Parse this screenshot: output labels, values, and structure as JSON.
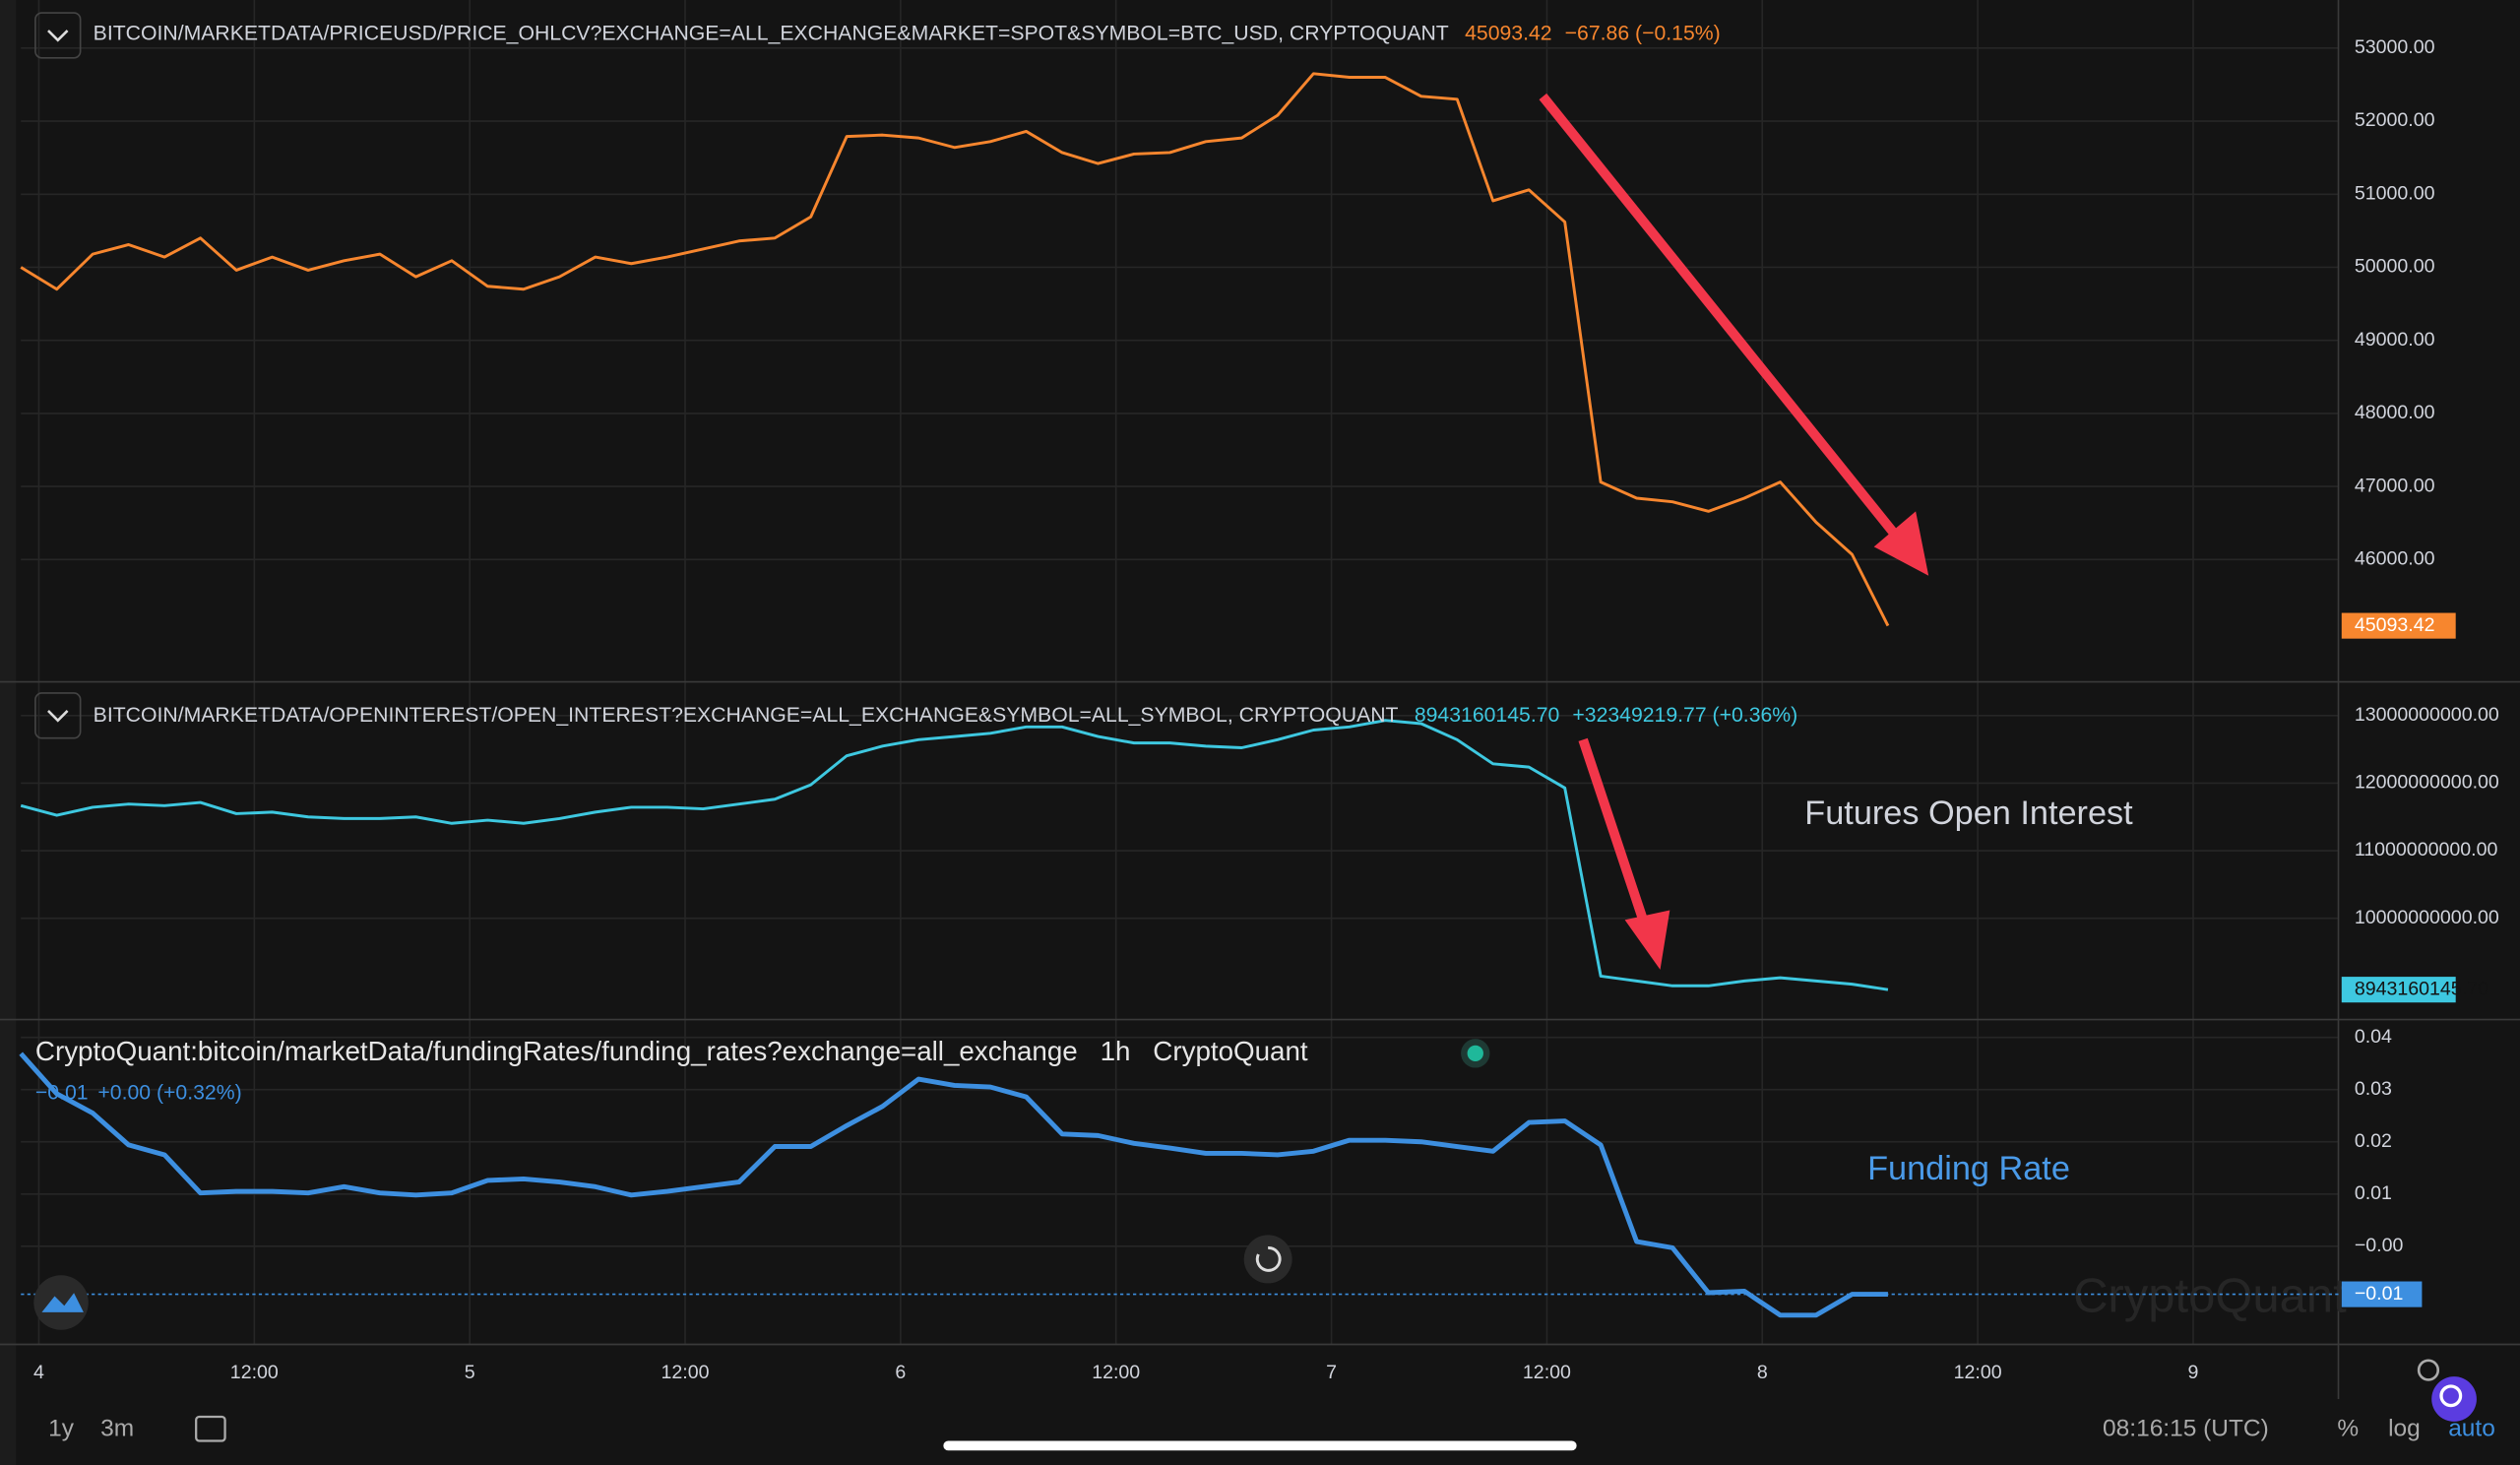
{
  "chart_data": [
    {
      "type": "line",
      "title": "BITCOIN/MARKETDATA/PRICEUSD/PRICE_OHLCV?EXCHANGE=ALL_EXCHANGE&MARKET=SPOT&SYMBOL=BTC_USD, CRYPTOQUANT",
      "last_label": "45093.42",
      "change": "−67.86 (−0.15%)",
      "color": "#f7862e",
      "x": [
        -1,
        1,
        3,
        5,
        7,
        9,
        11,
        13,
        15,
        17,
        19,
        21,
        23,
        25,
        27,
        29,
        31,
        33,
        35,
        37,
        39,
        41,
        43,
        45,
        47,
        49,
        51,
        53,
        55,
        57,
        59,
        61,
        63,
        65,
        67,
        69,
        71,
        73,
        75,
        77,
        79,
        81,
        83,
        85,
        87,
        89,
        91,
        93,
        95,
        97,
        99,
        101,
        103
      ],
      "values": [
        50000,
        49700,
        50180,
        50310,
        50140,
        50400,
        49960,
        50140,
        49960,
        50090,
        50180,
        49870,
        50090,
        49740,
        49700,
        49870,
        50140,
        50050,
        50140,
        50250,
        50360,
        50400,
        50690,
        51790,
        51810,
        51770,
        51640,
        51720,
        51860,
        51570,
        51420,
        51550,
        51570,
        51720,
        51770,
        52080,
        52650,
        52600,
        52600,
        52340,
        52300,
        50910,
        51060,
        50620,
        47060,
        46840,
        46790,
        46660,
        46840,
        47060,
        46510,
        46070,
        45093.42
      ],
      "ylim": [
        44370,
        53460
      ],
      "yticks": [
        {
          "value": 46000,
          "label": "46000.00"
        },
        {
          "value": 47000,
          "label": "47000.00"
        },
        {
          "value": 48000,
          "label": "48000.00"
        },
        {
          "value": 49000,
          "label": "49000.00"
        },
        {
          "value": 50000,
          "label": "50000.00"
        },
        {
          "value": 51000,
          "label": "51000.00"
        },
        {
          "value": 52000,
          "label": "52000.00"
        },
        {
          "value": 53000,
          "label": "53000.00"
        }
      ]
    },
    {
      "type": "line",
      "title": "BITCOIN/MARKETDATA/OPENINTEREST/OPEN_INTEREST?EXCHANGE=ALL_EXCHANGE&SYMBOL=ALL_SYMBOL, CRYPTOQUANT",
      "last_label": "8943160145.70",
      "change": "+32349219.77 (+0.36%)",
      "annotation": "Futures Open Interest",
      "color": "#3ec8e0",
      "x": [
        -1,
        1,
        3,
        5,
        7,
        9,
        11,
        13,
        15,
        17,
        19,
        21,
        23,
        25,
        27,
        29,
        31,
        33,
        35,
        37,
        39,
        41,
        43,
        45,
        47,
        49,
        51,
        53,
        55,
        57,
        59,
        61,
        63,
        65,
        67,
        69,
        71,
        73,
        75,
        77,
        79,
        81,
        83,
        85,
        87,
        89,
        91,
        93,
        95,
        97,
        99,
        101,
        103
      ],
      "values": [
        11667000000,
        11524000000,
        11643000000,
        11690000000,
        11667000000,
        11714000000,
        11548000000,
        11571000000,
        11500000000,
        11476000000,
        11476000000,
        11500000000,
        11405000000,
        11452000000,
        11405000000,
        11476000000,
        11571000000,
        11643000000,
        11643000000,
        11619000000,
        11690000000,
        11762000000,
        11976000000,
        12405000000,
        12548000000,
        12643000000,
        12690000000,
        12738000000,
        12833000000,
        12833000000,
        12690000000,
        12595000000,
        12595000000,
        12548000000,
        12524000000,
        12643000000,
        12786000000,
        12833000000,
        12929000000,
        12881000000,
        12643000000,
        12286000000,
        12238000000,
        11929000000,
        9143000000,
        9071000000,
        9000000000,
        9000000000,
        9071000000,
        9119000000,
        9071000000,
        9024000000,
        8943160145.7
      ],
      "ylim": [
        8524000000,
        13476000000
      ],
      "yticks": [
        {
          "value": 10000000000,
          "label": "10000000000.00"
        },
        {
          "value": 11000000000,
          "label": "11000000000.00"
        },
        {
          "value": 12000000000,
          "label": "12000000000.00"
        },
        {
          "value": 13000000000,
          "label": "13000000000.00"
        }
      ]
    },
    {
      "type": "line",
      "title": "CryptoQuant:bitcoin/marketData/fundingRates/funding_rates?exchange=all_exchange",
      "interval": "1h",
      "source": "CryptoQuant",
      "last_label": "−0.01",
      "change": "+0.00 (+0.32%)",
      "annotation": "Funding Rate",
      "color": "#3d8fe0",
      "x": [
        -1,
        1,
        3,
        5,
        7,
        9,
        11,
        13,
        15,
        17,
        19,
        21,
        23,
        25,
        27,
        29,
        31,
        33,
        35,
        37,
        39,
        41,
        43,
        45,
        47,
        49,
        51,
        53,
        55,
        57,
        59,
        61,
        63,
        65,
        67,
        69,
        71,
        73,
        75,
        77,
        79,
        81,
        83,
        85,
        87,
        89,
        91,
        93,
        95,
        97,
        99,
        101,
        103
      ],
      "values": [
        0.0369,
        0.0292,
        0.0255,
        0.0194,
        0.0175,
        0.0102,
        0.0105,
        0.0105,
        0.0102,
        0.0114,
        0.0102,
        0.0098,
        0.0102,
        0.0126,
        0.0129,
        0.0123,
        0.0114,
        0.0098,
        0.0105,
        0.0114,
        0.0123,
        0.0191,
        0.0191,
        0.0231,
        0.0268,
        0.032,
        0.0308,
        0.0305,
        0.0286,
        0.0215,
        0.0212,
        0.0197,
        0.0188,
        0.0178,
        0.0178,
        0.0175,
        0.0182,
        0.0203,
        0.0203,
        0.02,
        0.0191,
        0.0182,
        0.0237,
        0.024,
        0.0194,
        0.0009,
        -0.0003,
        -0.0089,
        -0.0086,
        -0.0132,
        -0.0132,
        -0.0092,
        -0.0092
      ],
      "ylim": [
        -0.0188,
        0.0428
      ],
      "yticks": [
        {
          "value": 0,
          "label": "−0.00"
        },
        0.01,
        0.02,
        0.03,
        0.04
      ],
      "xlim": [
        -1,
        128
      ],
      "xticks": [
        {
          "value": 0,
          "label": "4"
        },
        {
          "value": 12,
          "label": "12:00"
        },
        {
          "value": 24,
          "label": "5"
        },
        {
          "value": 36,
          "label": "12:00"
        },
        {
          "value": 48,
          "label": "6"
        },
        {
          "value": 60,
          "label": "12:00"
        },
        {
          "value": 72,
          "label": "7"
        },
        {
          "value": 84,
          "label": "12:00"
        },
        {
          "value": 96,
          "label": "8"
        },
        {
          "value": 108,
          "label": "12:00"
        },
        {
          "value": 120,
          "label": "9"
        }
      ]
    }
  ],
  "ui": {
    "range_buttons": [
      "1y",
      "3m"
    ],
    "clock": "08:16:15 (UTC)",
    "scale_buttons": [
      "%",
      "log",
      "auto"
    ],
    "watermark": "CryptoQuant"
  }
}
